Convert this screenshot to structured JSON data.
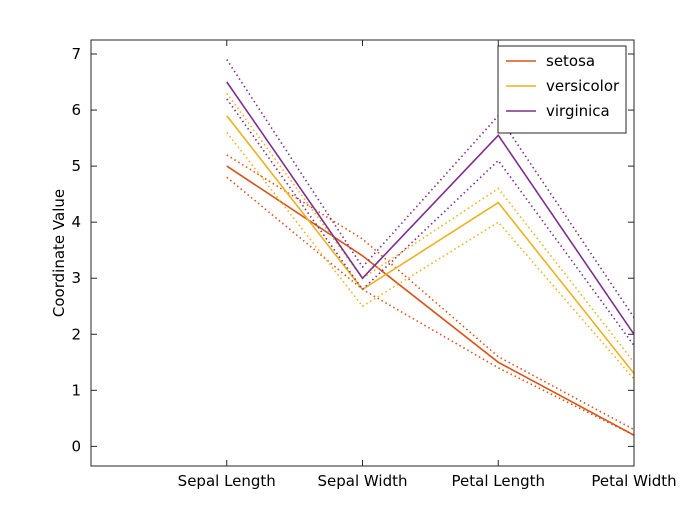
{
  "chart_data": {
    "type": "line",
    "title": "",
    "xlabel": "",
    "ylabel": "Coordinate Value",
    "categories": [
      "Sepal Length",
      "Sepal Width",
      "Petal Length",
      "Petal Width"
    ],
    "x_range": [
      -1,
      3
    ],
    "ylim": [
      -0.35,
      7.25
    ],
    "yticks": [
      0,
      1,
      2,
      3,
      4,
      5,
      6,
      7
    ],
    "legend_position": "top-right",
    "series": [
      {
        "name": "setosa",
        "color": "#d95319",
        "mean": [
          5.0,
          3.4,
          1.5,
          0.2
        ],
        "upper": [
          5.2,
          3.7,
          1.6,
          0.3
        ],
        "lower": [
          4.8,
          2.8,
          1.4,
          0.2
        ]
      },
      {
        "name": "versicolor",
        "color": "#edb120",
        "mean": [
          5.9,
          2.8,
          4.35,
          1.3
        ],
        "upper": [
          6.3,
          3.0,
          4.6,
          1.5
        ],
        "lower": [
          5.6,
          2.5,
          4.0,
          1.2
        ]
      },
      {
        "name": "virginica",
        "color": "#7e2f8e",
        "mean": [
          6.5,
          3.0,
          5.55,
          2.0
        ],
        "upper": [
          6.9,
          3.2,
          5.9,
          2.3
        ],
        "lower": [
          6.2,
          2.8,
          5.1,
          1.8
        ]
      }
    ]
  }
}
